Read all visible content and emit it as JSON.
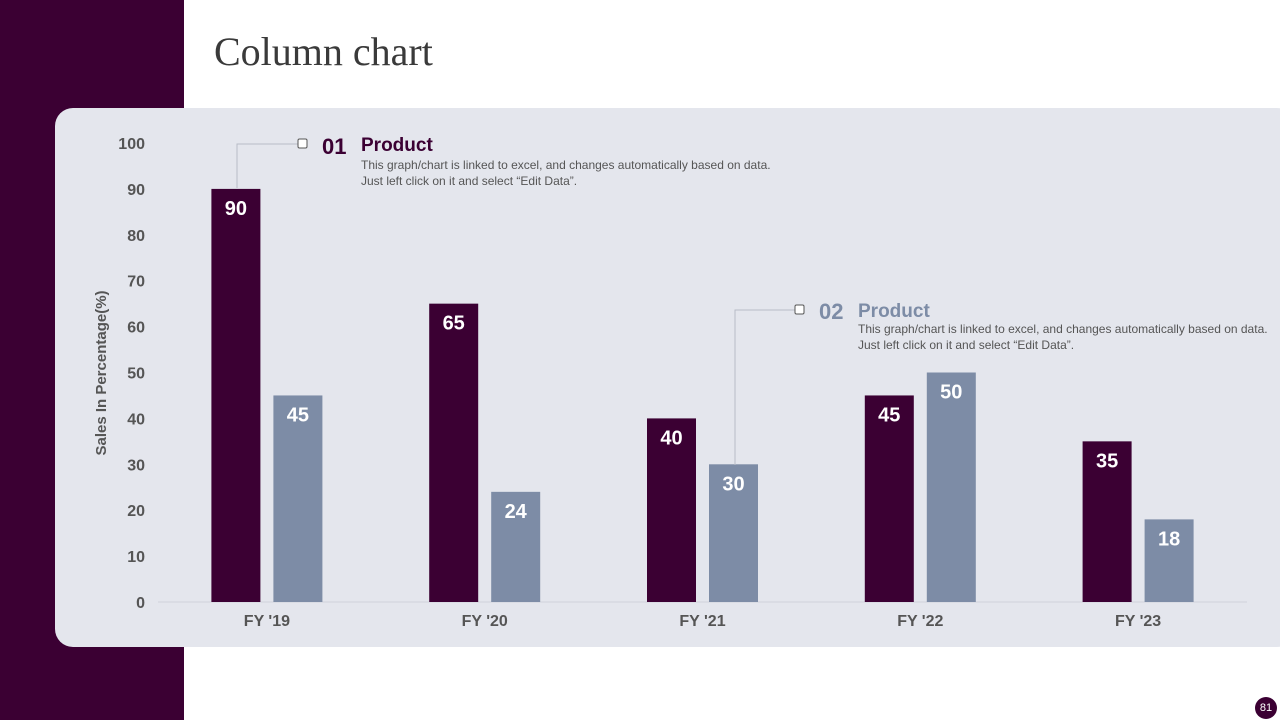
{
  "title": "Column chart",
  "page_number": "81",
  "colors": {
    "series1": "#3b0033",
    "series2": "#7d8ca6",
    "sidebar": "#3b0033",
    "panel": "#e4e6ed"
  },
  "callouts": [
    {
      "number": "01",
      "title": "Product",
      "text": "This graph/chart is linked to excel, and changes automatically based on data. Just left click on it and select “Edit Data”."
    },
    {
      "number": "02",
      "title": "Product",
      "text": "This graph/chart is linked to excel, and changes automatically based on data. Just left click on it and select “Edit Data”."
    }
  ],
  "chart_data": {
    "type": "bar",
    "title": "",
    "xlabel": "",
    "ylabel": "Sales In Percentage(%)",
    "ylim": [
      0,
      100
    ],
    "yticks": [
      0,
      10,
      20,
      30,
      40,
      50,
      60,
      70,
      80,
      90,
      100
    ],
    "categories": [
      "FY '19",
      "FY '20",
      "FY '21",
      "FY '22",
      "FY '23"
    ],
    "series": [
      {
        "name": "Product 01",
        "values": [
          90,
          65,
          40,
          45,
          35
        ]
      },
      {
        "name": "Product 02",
        "values": [
          45,
          24,
          30,
          50,
          18
        ]
      }
    ],
    "grid": false,
    "data_labels": true
  }
}
